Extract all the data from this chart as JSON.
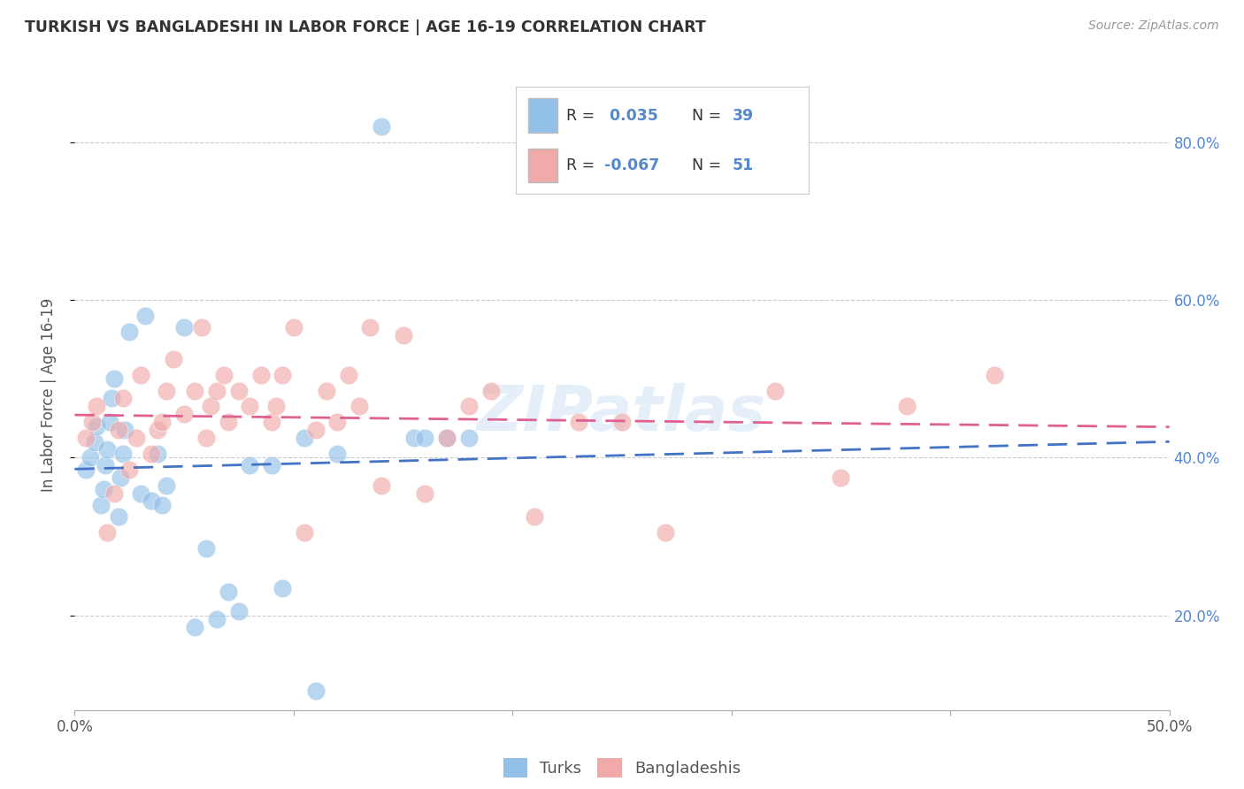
{
  "title": "TURKISH VS BANGLADESHI IN LABOR FORCE | AGE 16-19 CORRELATION CHART",
  "source": "Source: ZipAtlas.com",
  "ylabel_label": "In Labor Force | Age 16-19",
  "xlim": [
    0.0,
    0.5
  ],
  "ylim": [
    0.08,
    0.88
  ],
  "legend_turks_R": " 0.035",
  "legend_turks_N": "39",
  "legend_bangladeshi_R": "-0.067",
  "legend_bangladeshi_N": "51",
  "legend_x_label": "Turks",
  "legend_y_label": "Bangladeshis",
  "turks_color": "#92c0e8",
  "bangladeshi_color": "#f0aaaa",
  "turks_line_color": "#4472c4",
  "bangladeshi_line_color": "#e06090",
  "watermark": "ZIPatlas",
  "turks_x": [
    0.005,
    0.007,
    0.009,
    0.01,
    0.012,
    0.013,
    0.014,
    0.015,
    0.016,
    0.017,
    0.018,
    0.02,
    0.021,
    0.022,
    0.023,
    0.025,
    0.03,
    0.032,
    0.035,
    0.038,
    0.04,
    0.042,
    0.05,
    0.055,
    0.06,
    0.065,
    0.07,
    0.075,
    0.08,
    0.09,
    0.095,
    0.105,
    0.11,
    0.12,
    0.14,
    0.155,
    0.16,
    0.17,
    0.18
  ],
  "turks_y": [
    0.385,
    0.4,
    0.42,
    0.44,
    0.34,
    0.36,
    0.39,
    0.41,
    0.445,
    0.475,
    0.5,
    0.325,
    0.375,
    0.405,
    0.435,
    0.56,
    0.355,
    0.58,
    0.345,
    0.405,
    0.34,
    0.365,
    0.565,
    0.185,
    0.285,
    0.195,
    0.23,
    0.205,
    0.39,
    0.39,
    0.235,
    0.425,
    0.105,
    0.405,
    0.82,
    0.425,
    0.425,
    0.425,
    0.425
  ],
  "bangladeshi_x": [
    0.005,
    0.008,
    0.01,
    0.015,
    0.018,
    0.02,
    0.022,
    0.025,
    0.028,
    0.03,
    0.035,
    0.038,
    0.04,
    0.042,
    0.045,
    0.05,
    0.055,
    0.058,
    0.06,
    0.062,
    0.065,
    0.068,
    0.07,
    0.075,
    0.08,
    0.085,
    0.09,
    0.092,
    0.095,
    0.1,
    0.105,
    0.11,
    0.115,
    0.12,
    0.125,
    0.13,
    0.135,
    0.14,
    0.15,
    0.16,
    0.17,
    0.18,
    0.19,
    0.21,
    0.23,
    0.25,
    0.27,
    0.32,
    0.35,
    0.38,
    0.42
  ],
  "bangladeshi_y": [
    0.425,
    0.445,
    0.465,
    0.305,
    0.355,
    0.435,
    0.475,
    0.385,
    0.425,
    0.505,
    0.405,
    0.435,
    0.445,
    0.485,
    0.525,
    0.455,
    0.485,
    0.565,
    0.425,
    0.465,
    0.485,
    0.505,
    0.445,
    0.485,
    0.465,
    0.505,
    0.445,
    0.465,
    0.505,
    0.565,
    0.305,
    0.435,
    0.485,
    0.445,
    0.505,
    0.465,
    0.565,
    0.365,
    0.555,
    0.355,
    0.425,
    0.465,
    0.485,
    0.325,
    0.445,
    0.445,
    0.305,
    0.485,
    0.375,
    0.465,
    0.505
  ],
  "background_color": "#ffffff",
  "grid_color": "#cccccc"
}
